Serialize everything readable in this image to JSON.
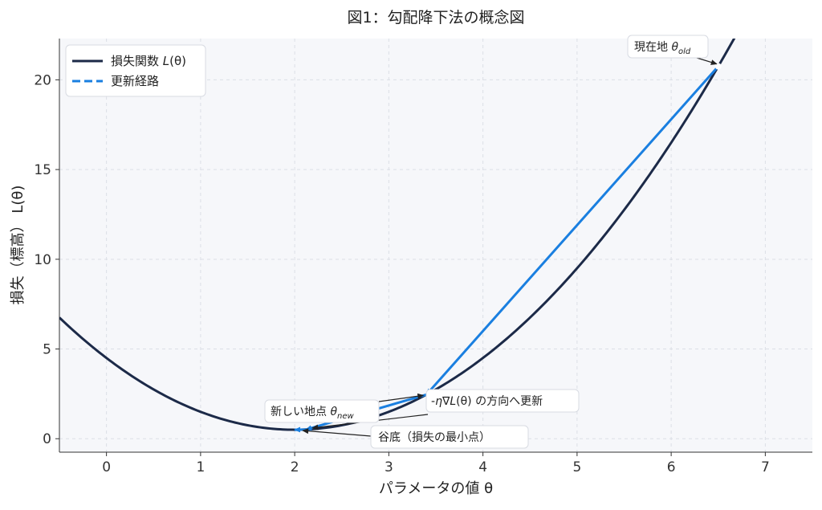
{
  "chart_data": {
    "type": "line",
    "title": "図1：勾配降下法の概念図",
    "xlabel": "パラメータの値 θ",
    "ylabel": "損失（標高）  L(θ)",
    "xlim": [
      -0.5,
      7.5
    ],
    "ylim": [
      -0.75,
      22.3
    ],
    "xticks": [
      "0",
      "1",
      "2",
      "3",
      "4",
      "5",
      "6",
      "7"
    ],
    "yticks": [
      "0",
      "5",
      "10",
      "15",
      "20"
    ],
    "grid": true,
    "legend_position": "top-left",
    "series": [
      {
        "name": "損失関数 L(θ)",
        "style": "solid",
        "color": "#1c2a48",
        "function": "L(θ) = (θ − 2)^2 + 0.5",
        "x_range": [
          -0.5,
          7.5
        ]
      },
      {
        "name": "更新経路",
        "style": "dashed",
        "color": "#1a7fe0",
        "points": [
          [
            6.5,
            20.75
          ],
          [
            3.4,
            2.46
          ],
          [
            2.12,
            0.51
          ],
          [
            2.0,
            0.5
          ]
        ]
      }
    ],
    "legend": [
      {
        "main": "損失関数 ",
        "italic": "L",
        "rest": "(θ)"
      },
      {
        "main": "更新経路",
        "italic": "",
        "rest": ""
      }
    ],
    "annotations": {
      "current": {
        "main": "現在地 ",
        "theta": "θ",
        "sub": "old"
      },
      "new": {
        "main": "新しい地点 ",
        "theta": "θ",
        "sub": "new"
      },
      "direction": {
        "pre": "-",
        "eta": "η",
        "nabla": "∇",
        "L": "L",
        "rest": "(θ) の方向へ更新"
      },
      "minimum": {
        "text": "谷底（損失の最小点）"
      }
    },
    "colors": {
      "loss_curve": "#1c2a48",
      "update_path": "#1a7fe0",
      "plot_background": "#f6f7fa",
      "grid": "#dcdfe6"
    }
  }
}
